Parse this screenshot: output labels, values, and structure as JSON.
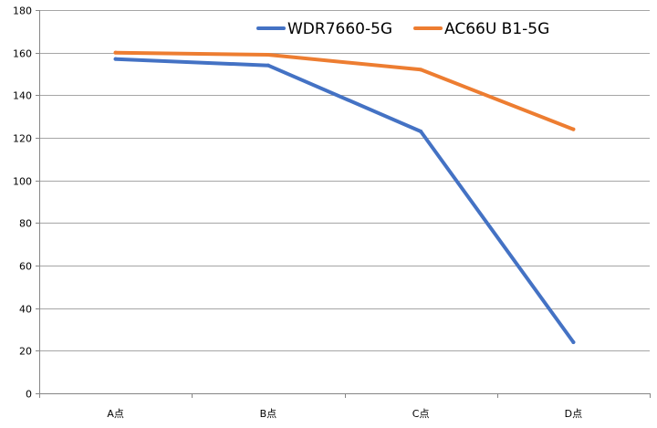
{
  "chart_data": {
    "type": "line",
    "title": "",
    "xlabel": "",
    "ylabel": "",
    "categories": [
      "A点",
      "B点",
      "C点",
      "D点"
    ],
    "ylim": [
      0,
      180
    ],
    "yticks": [
      0,
      20,
      40,
      60,
      80,
      100,
      120,
      140,
      160,
      180
    ],
    "grid": "horizontal",
    "legend_position": "top-right",
    "series": [
      {
        "name": "WDR7660-5G",
        "color": "#4472C4",
        "values": [
          157,
          154,
          123,
          24
        ]
      },
      {
        "name": "AC66U B1-5G",
        "color": "#ED7D31",
        "values": [
          160,
          159,
          152,
          124
        ]
      }
    ]
  }
}
